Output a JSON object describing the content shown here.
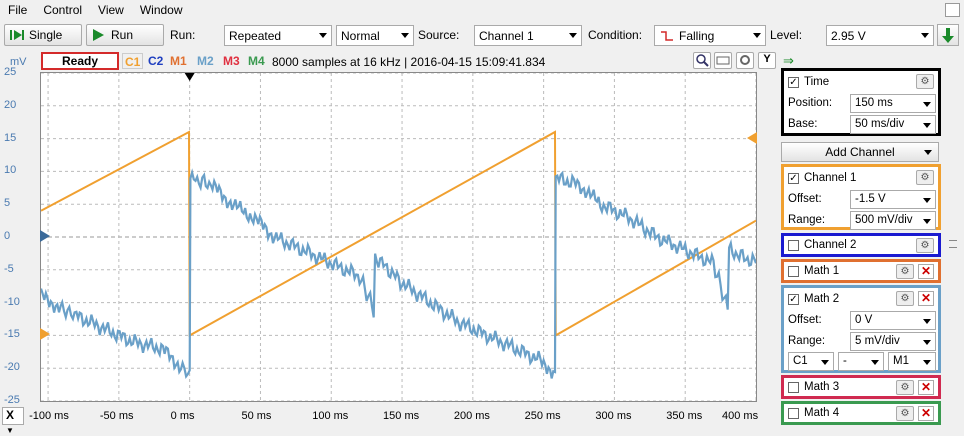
{
  "menu": [
    "File",
    "Control",
    "View",
    "Window"
  ],
  "toolbar": {
    "single_label": "Single",
    "run_label": "Run",
    "run_caption": "Run:",
    "run_mode": "Repeated",
    "mode2": "Normal",
    "source_caption": "Source:",
    "source": "Channel 1",
    "condition_caption": "Condition:",
    "condition": "Falling",
    "level_caption": "Level:",
    "level": "2.95 V"
  },
  "status": {
    "state": "Ready",
    "tags": [
      "C1",
      "C2",
      "M1",
      "M2",
      "M3",
      "M4"
    ],
    "tag_colors": [
      "#f0a030",
      "#2040c0",
      "#e07030",
      "#6aa0c8",
      "#e03040",
      "#3a9a50"
    ],
    "sample_info": "8000 samples at 16 kHz | 2016-04-15 15:09:41.834"
  },
  "plot": {
    "y_unit": "mV",
    "y_ticks": [
      "25",
      "20",
      "15",
      "10",
      "5",
      "0",
      "-5",
      "-10",
      "-15",
      "-20",
      "-25"
    ],
    "x_ticks": [
      "-100 ms",
      "-50 ms",
      "0 ms",
      "50 ms",
      "100 ms",
      "150 ms",
      "200 ms",
      "250 ms",
      "300 ms",
      "350 ms",
      "400 ms"
    ],
    "x_axis_button": "X"
  },
  "chart_data": {
    "type": "line",
    "xlim": [
      -105,
      400
    ],
    "ylim": [
      -25,
      25
    ],
    "grid": true,
    "series": [
      {
        "name": "C1",
        "color": "#f0a030",
        "x": [
          -105,
          -0.5,
          0,
          258,
          258.5,
          400
        ],
        "y": [
          4,
          16,
          -15,
          16,
          -15,
          2.5
        ]
      },
      {
        "name": "M2",
        "color": "#6aa0c8",
        "x": [
          -105,
          -90,
          -80,
          -60,
          -40,
          -20,
          -5,
          0,
          0.5,
          15,
          30,
          45,
          60,
          80,
          100,
          120,
          130,
          131,
          150,
          170,
          190,
          210,
          230,
          250,
          258,
          258.5,
          275,
          290,
          310,
          330,
          350,
          370,
          380,
          381,
          400
        ],
        "y": [
          -9,
          -11,
          -12,
          -14,
          -16,
          -17,
          -20,
          -21,
          9,
          8,
          5,
          3,
          0,
          -2,
          -4,
          -6,
          -11,
          -3,
          -7,
          -10,
          -13,
          -15,
          -17,
          -19,
          -21,
          9,
          8,
          5,
          3,
          0,
          -2,
          -4,
          -11,
          -2,
          -4
        ]
      }
    ]
  },
  "sidebar": {
    "time_label": "Time",
    "position_caption": "Position:",
    "position": "150 ms",
    "base_caption": "Base:",
    "base": "50 ms/div",
    "add_channel": "Add Channel",
    "ch1_label": "Channel 1",
    "ch1_offset_caption": "Offset:",
    "ch1_offset": "-1.5 V",
    "ch1_range_caption": "Range:",
    "ch1_range": "500 mV/div",
    "ch2_label": "Channel 2",
    "math1_label": "Math 1",
    "math2_label": "Math 2",
    "math2_offset_caption": "Offset:",
    "math2_offset": "0 V",
    "math2_range_caption": "Range:",
    "math2_range": "5 mV/div",
    "math2_op_a": "C1",
    "math2_op": "-",
    "math2_op_b": "M1",
    "math3_label": "Math 3",
    "math4_label": "Math 4"
  }
}
